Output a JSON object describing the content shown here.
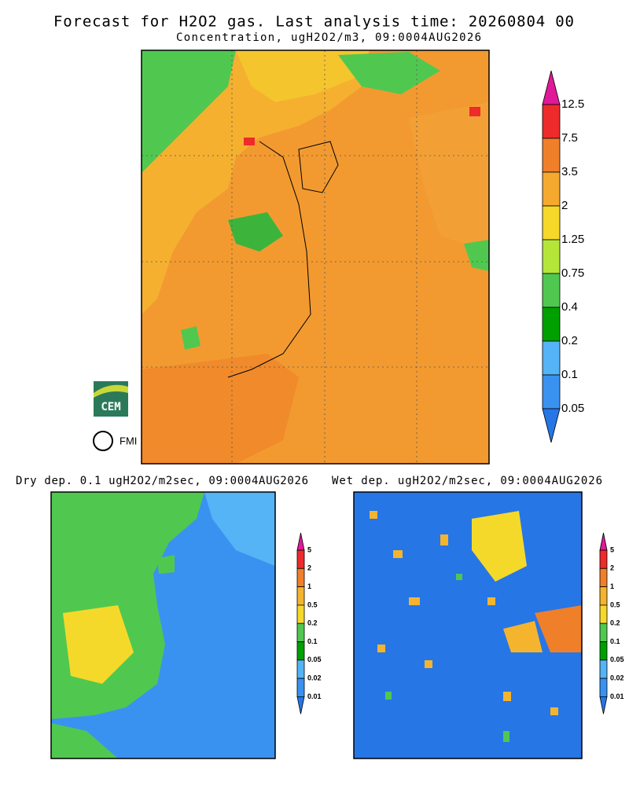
{
  "title": "Forecast for H2O2 gas. Last analysis time: 20260804 00",
  "panels": [
    {
      "title": "Concentration, ugH2O2/m3, 09:0004AUG2026"
    },
    {
      "title": "Dry dep. 0.1 ugH2O2/m2sec, 09:0004AUG2026"
    },
    {
      "title": "Wet dep. ugH2O2/m2sec, 09:0004AUG2026"
    }
  ],
  "colorbars": [
    {
      "labels": [
        "12.5",
        "7.5",
        "3.5",
        "2",
        "1.25",
        "0.75",
        "0.4",
        "0.2",
        "0.1",
        "0.05"
      ],
      "colors": [
        "#e0199a",
        "#ee2a2a",
        "#f07f2a",
        "#f5a92e",
        "#f5d92a",
        "#b4e63a",
        "#50c850",
        "#00a000",
        "#54b4f5",
        "#3a92f0",
        "#2676e6"
      ]
    },
    {
      "labels": [
        "5",
        "2",
        "1",
        "0.5",
        "0.2",
        "0.1",
        "0.05",
        "0.02",
        "0.01"
      ],
      "colors": [
        "#e0199a",
        "#ee2a2a",
        "#f07f2a",
        "#f5b42e",
        "#f5d92a",
        "#50c850",
        "#00a000",
        "#54b4f5",
        "#3a92f0",
        "#2676e6"
      ]
    }
  ],
  "logos": [
    "CEM",
    "FMI"
  ]
}
